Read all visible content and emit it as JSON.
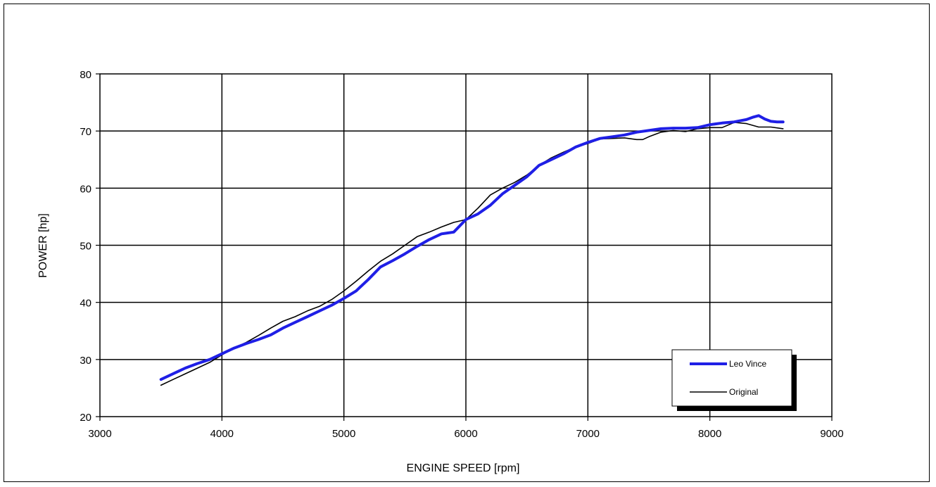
{
  "chart_data": {
    "type": "line",
    "title": "",
    "xlabel": "ENGINE SPEED [rpm]",
    "ylabel": "POWER [hp]",
    "xlim": [
      3000,
      9000
    ],
    "ylim": [
      20,
      80
    ],
    "x_ticks": [
      "3000",
      "4000",
      "5000",
      "6000",
      "7000",
      "8000",
      "9000"
    ],
    "y_ticks": [
      "20",
      "30",
      "40",
      "50",
      "60",
      "70",
      "80"
    ],
    "grid": true,
    "legend_position": "bottom-right",
    "series": [
      {
        "name": "Leo Vince",
        "color": "#1f1fe6",
        "x": [
          3500,
          3600,
          3700,
          3800,
          3900,
          4000,
          4100,
          4200,
          4300,
          4400,
          4500,
          4600,
          4700,
          4800,
          4900,
          5000,
          5100,
          5200,
          5300,
          5400,
          5500,
          5600,
          5700,
          5800,
          5900,
          6000,
          6100,
          6200,
          6300,
          6400,
          6500,
          6600,
          6700,
          6800,
          6900,
          7000,
          7100,
          7200,
          7300,
          7400,
          7500,
          7600,
          7700,
          7800,
          7900,
          8000,
          8100,
          8200,
          8300,
          8350,
          8400,
          8450,
          8500,
          8550,
          8600
        ],
        "y": [
          26.5,
          27.5,
          28.5,
          29.3,
          30.0,
          31.0,
          32.0,
          32.8,
          33.5,
          34.3,
          35.5,
          36.5,
          37.5,
          38.5,
          39.5,
          40.7,
          42.0,
          44.0,
          46.2,
          47.3,
          48.5,
          49.8,
          51.0,
          52.0,
          52.3,
          54.5,
          55.5,
          57.0,
          59.0,
          60.5,
          62.0,
          64.0,
          65.0,
          66.0,
          67.2,
          68.0,
          68.7,
          69.0,
          69.3,
          69.8,
          70.1,
          70.4,
          70.5,
          70.5,
          70.6,
          71.1,
          71.4,
          71.6,
          72.0,
          72.4,
          72.7,
          72.1,
          71.7,
          71.6,
          71.6
        ]
      },
      {
        "name": "Original",
        "color": "#000000",
        "x": [
          3500,
          3600,
          3700,
          3800,
          3900,
          4000,
          4100,
          4200,
          4300,
          4400,
          4500,
          4600,
          4700,
          4800,
          4900,
          5000,
          5100,
          5200,
          5300,
          5400,
          5500,
          5600,
          5700,
          5800,
          5900,
          6000,
          6100,
          6200,
          6300,
          6400,
          6500,
          6600,
          6700,
          6800,
          6900,
          7000,
          7100,
          7200,
          7300,
          7400,
          7450,
          7500,
          7600,
          7700,
          7800,
          7900,
          8000,
          8100,
          8200,
          8300,
          8400,
          8500,
          8600
        ],
        "y": [
          25.5,
          26.5,
          27.5,
          28.5,
          29.5,
          30.8,
          32.0,
          33.0,
          34.2,
          35.5,
          36.7,
          37.5,
          38.5,
          39.3,
          40.5,
          42.0,
          43.7,
          45.5,
          47.2,
          48.5,
          50.0,
          51.5,
          52.3,
          53.2,
          54.0,
          54.5,
          56.5,
          58.8,
          60.0,
          61.0,
          62.3,
          64.0,
          65.3,
          66.3,
          67.2,
          67.8,
          68.6,
          68.7,
          68.8,
          68.5,
          68.5,
          69.0,
          69.8,
          70.1,
          69.9,
          70.4,
          70.6,
          70.6,
          71.5,
          71.3,
          70.7,
          70.7,
          70.4
        ]
      }
    ]
  }
}
